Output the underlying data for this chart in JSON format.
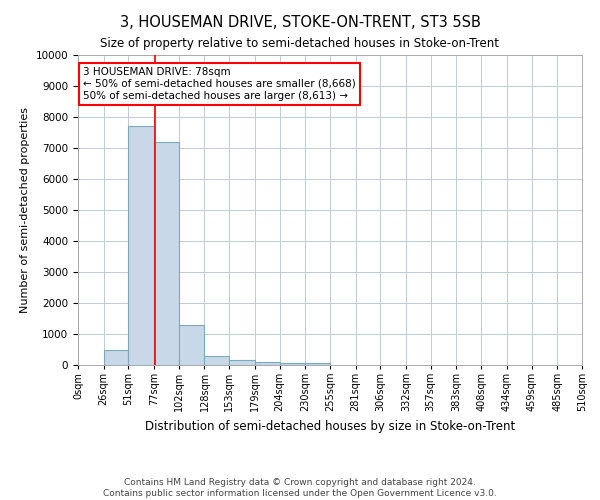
{
  "title": "3, HOUSEMAN DRIVE, STOKE-ON-TRENT, ST3 5SB",
  "subtitle": "Size of property relative to semi-detached houses in Stoke-on-Trent",
  "xlabel": "Distribution of semi-detached houses by size in Stoke-on-Trent",
  "ylabel": "Number of semi-detached properties",
  "footnote1": "Contains HM Land Registry data © Crown copyright and database right 2024.",
  "footnote2": "Contains public sector information licensed under the Open Government Licence v3.0.",
  "bin_labels": [
    "0sqm",
    "26sqm",
    "51sqm",
    "77sqm",
    "102sqm",
    "128sqm",
    "153sqm",
    "179sqm",
    "204sqm",
    "230sqm",
    "255sqm",
    "281sqm",
    "306sqm",
    "332sqm",
    "357sqm",
    "383sqm",
    "408sqm",
    "434sqm",
    "459sqm",
    "485sqm",
    "510sqm"
  ],
  "bar_values": [
    0,
    500,
    7700,
    7200,
    1300,
    300,
    150,
    100,
    75,
    50,
    0,
    0,
    0,
    0,
    0,
    0,
    0,
    0,
    0,
    0
  ],
  "bar_color": "#c8d8e8",
  "bar_edge_color": "#7aaabb",
  "grid_color": "#bbccdd",
  "property_line_x": 78,
  "annotation_text": "3 HOUSEMAN DRIVE: 78sqm\n← 50% of semi-detached houses are smaller (8,668)\n50% of semi-detached houses are larger (8,613) →",
  "annotation_box_color": "white",
  "annotation_edge_color": "red",
  "line_color": "red",
  "ylim": [
    0,
    10000
  ],
  "yticks": [
    0,
    1000,
    2000,
    3000,
    4000,
    5000,
    6000,
    7000,
    8000,
    9000,
    10000
  ],
  "bin_edges": [
    0,
    26,
    51,
    77,
    102,
    128,
    153,
    179,
    204,
    230,
    255,
    281,
    306,
    332,
    357,
    383,
    408,
    434,
    459,
    485,
    510
  ]
}
